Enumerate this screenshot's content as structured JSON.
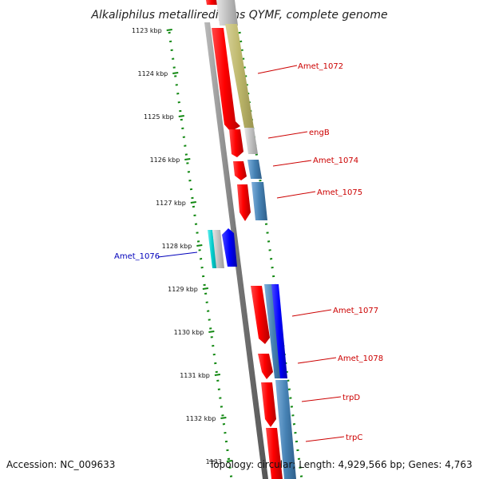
{
  "title": "Alkaliphilus metalliredigens QYMF, complete genome",
  "footer": {
    "accession": "Accession: NC_009633",
    "summary": "Topology: circular; Length: 4,929,566 bp; Genes: 4,763"
  },
  "ticks": [
    "1123 kbp",
    "1124 kbp",
    "1125 kbp",
    "1126 kbp",
    "1127 kbp",
    "1128 kbp",
    "1129 kbp",
    "1130 kbp",
    "1131 kbp",
    "1132 kbp",
    "1133"
  ],
  "genes": [
    {
      "name": "Amet_1072",
      "color": "#cc0000"
    },
    {
      "name": "engB",
      "color": "#cc0000"
    },
    {
      "name": "Amet_1074",
      "color": "#cc0000"
    },
    {
      "name": "Amet_1075",
      "color": "#cc0000"
    },
    {
      "name": "Amet_1076",
      "color": "#0000bb"
    },
    {
      "name": "Amet_1077",
      "color": "#cc0000"
    },
    {
      "name": "Amet_1078",
      "color": "#cc0000"
    },
    {
      "name": "trpD",
      "color": "#cc0000"
    },
    {
      "name": "trpC",
      "color": "#cc0000"
    }
  ],
  "colors": {
    "axis": "#888888",
    "dotted": "#118811",
    "cds_forward": "#ff0000",
    "cds_reverse": "#0000ff",
    "khaki": "#bdb76b",
    "steelblue": "#4682b4",
    "gray": "#c0c0c0",
    "cyan": "#00cccc"
  }
}
